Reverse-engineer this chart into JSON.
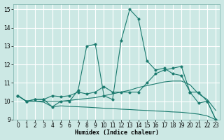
{
  "xlabel": "Humidex (Indice chaleur)",
  "xlim": [
    -0.5,
    23.5
  ],
  "ylim": [
    9,
    15.3
  ],
  "yticks": [
    9,
    10,
    11,
    12,
    13,
    14,
    15
  ],
  "xticks": [
    0,
    1,
    2,
    3,
    4,
    5,
    6,
    7,
    8,
    9,
    10,
    11,
    12,
    13,
    14,
    15,
    16,
    17,
    18,
    19,
    20,
    21,
    22,
    23
  ],
  "bg_color": "#cce8e4",
  "grid_color": "#b0d5d0",
  "line_color": "#1a7a6e",
  "series_spiky": [
    10.3,
    10.0,
    10.1,
    10.1,
    9.7,
    10.0,
    10.0,
    10.6,
    13.0,
    13.1,
    10.3,
    10.1,
    13.3,
    15.0,
    14.5,
    12.2,
    11.7,
    11.8,
    11.5,
    11.4,
    10.5,
    9.9,
    10.0,
    9.0
  ],
  "series_smooth": [
    10.3,
    10.0,
    10.0,
    10.0,
    10.0,
    10.0,
    10.05,
    10.1,
    10.15,
    10.2,
    10.3,
    10.4,
    10.5,
    10.6,
    10.75,
    10.85,
    10.95,
    11.05,
    11.1,
    11.1,
    10.9,
    10.4,
    10.1,
    9.5
  ],
  "series_midrise": [
    10.3,
    10.0,
    10.1,
    10.1,
    10.3,
    10.25,
    10.3,
    10.5,
    10.4,
    10.5,
    10.8,
    10.5,
    10.5,
    10.5,
    10.5,
    11.0,
    11.5,
    11.7,
    11.8,
    11.9,
    10.5,
    10.5,
    10.0,
    9.0
  ],
  "series_declining": [
    10.3,
    10.0,
    10.0,
    9.95,
    9.7,
    9.75,
    9.72,
    9.7,
    9.68,
    9.65,
    9.62,
    9.6,
    9.57,
    9.55,
    9.52,
    9.5,
    9.47,
    9.45,
    9.42,
    9.4,
    9.35,
    9.3,
    9.2,
    9.0
  ],
  "lw": 0.8,
  "ms": 2.5
}
